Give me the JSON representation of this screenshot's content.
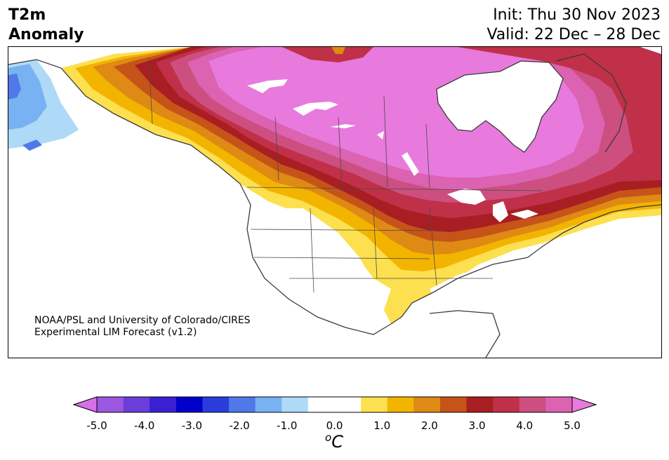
{
  "header": {
    "variable_line1": "T2m",
    "variable_line2": "Anomaly",
    "init": "Init: Thu 30 Nov 2023",
    "valid": "Valid: 22 Dec – 28 Dec"
  },
  "credit": {
    "line1": "NOAA/PSL and University of Colorado/CIRES",
    "line2": "Experimental LIM Forecast (v1.2)"
  },
  "colorbar": {
    "ticks": [
      "-5.0",
      "-4.0",
      "-3.0",
      "-2.0",
      "-1.0",
      "0.0",
      "1.0",
      "2.0",
      "3.0",
      "4.0",
      "5.0"
    ],
    "unit_sup": "o",
    "unit_base": "C",
    "colors": [
      "#d66fe8",
      "#9b57e0",
      "#6b3ddb",
      "#3b20d2",
      "#0000cc",
      "#2b3cdc",
      "#4f78e8",
      "#78b2f2",
      "#aedaf8",
      "#ffffff",
      "#ffffff",
      "#fde04f",
      "#f3b400",
      "#de8a14",
      "#c65318",
      "#a81e22",
      "#c03048",
      "#cc4f80",
      "#dc62b2",
      "#e77adc"
    ]
  },
  "map": {
    "colors": {
      "magenta": "#e77adc",
      "pink": "#dc62b2",
      "rose": "#cc4f80",
      "crimson": "#c03048",
      "darkred": "#a81e22",
      "rust": "#c65318",
      "orange": "#de8a14",
      "gold": "#f3b400",
      "yellow": "#fde04f",
      "lightblue": "#aedaf8",
      "midblue": "#78b2f2",
      "blue": "#4f78e8",
      "water": "#ffffff"
    }
  }
}
